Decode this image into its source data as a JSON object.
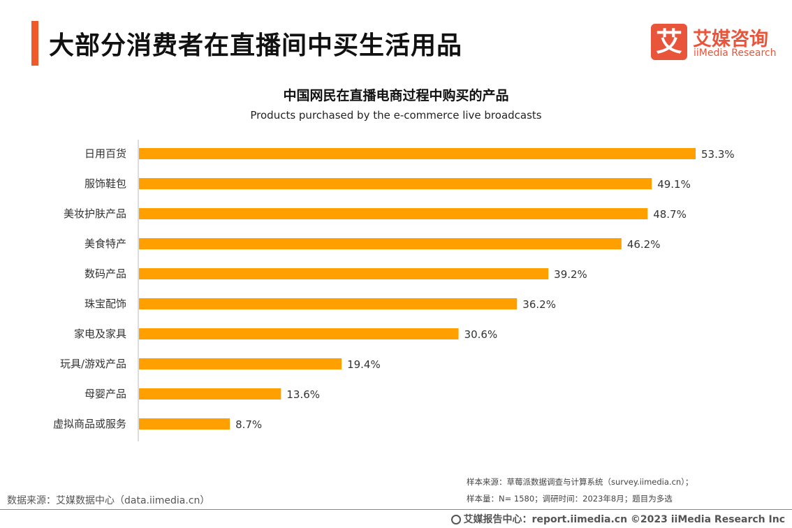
{
  "header": {
    "title": "大部分消费者在直播间中买生活用品"
  },
  "logo": {
    "mark": "艾",
    "name_cn": "艾媒咨询",
    "name_en": "iiMedia Research"
  },
  "colors": {
    "accent": "#f05a28",
    "bar": "#ffa000",
    "logo": "#e8553a"
  },
  "chart_data": {
    "type": "bar",
    "orientation": "horizontal",
    "title": "中国网民在直播电商过程中购买的产品",
    "subtitle": "Products purchased by the e-commerce live broadcasts",
    "categories": [
      "日用百货",
      "服饰鞋包",
      "美妆护肤产品",
      "美食特产",
      "数码产品",
      "珠宝配饰",
      "家电及家具",
      "玩具/游戏产品",
      "母婴产品",
      "虚拟商品或服务"
    ],
    "values": [
      53.3,
      49.1,
      48.7,
      46.2,
      39.2,
      36.2,
      30.6,
      19.4,
      13.6,
      8.7
    ],
    "value_suffix": "%",
    "xlim": [
      0,
      53.3
    ],
    "grid": false,
    "legend": "none"
  },
  "footer": {
    "source": "数据来源：艾媒数据中心（data.iimedia.cn）",
    "sample_source": "样本来源：草莓派数据调查与计算系统（survey.iimedia.cn）；",
    "sample_info": "样本量：N= 1580；调研时间：2023年8月；题目为多选",
    "copyright": "艾媒报告中心：report.iimedia.cn   ©2023  iiMedia Research  Inc"
  }
}
